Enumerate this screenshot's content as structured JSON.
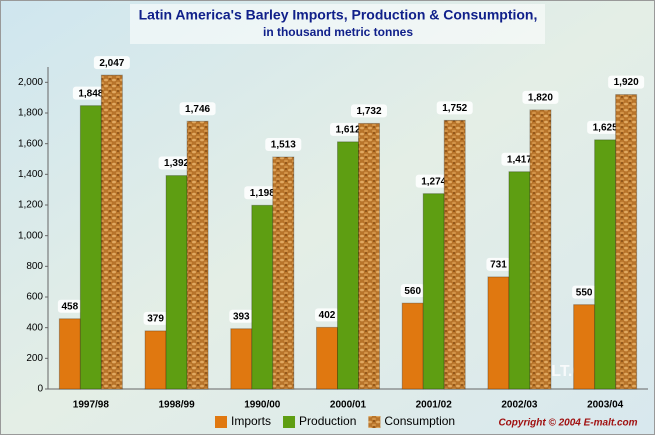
{
  "chart_data": {
    "type": "bar",
    "title": "Latin America's Barley Imports, Production & Consumption,",
    "subtitle": "in thousand metric tonnes",
    "categories": [
      "1997/98",
      "1998/99",
      "1990/00",
      "2000/01",
      "2001/02",
      "2002/03",
      "2003/04"
    ],
    "series": [
      {
        "name": "Imports",
        "color": "#e07810",
        "values": [
          458,
          379,
          393,
          402,
          560,
          731,
          550
        ],
        "value_labels": [
          "458",
          "379",
          "393",
          "402",
          "560",
          "731",
          "550"
        ]
      },
      {
        "name": "Production",
        "color": "#5e9e12",
        "values": [
          1848,
          1392,
          1198,
          1612,
          1274,
          1417,
          1625
        ],
        "value_labels": [
          "1,848",
          "1,392",
          "1,198",
          "1,612",
          "1,274",
          "1,417",
          "1,625"
        ]
      },
      {
        "name": "Consumption",
        "color": "#b8742a",
        "values": [
          2047,
          1746,
          1513,
          1732,
          1752,
          1820,
          1920
        ],
        "value_labels": [
          "2,047",
          "1,746",
          "1,513",
          "1,732",
          "1,752",
          "1,820",
          "1,920"
        ]
      }
    ],
    "ylim": [
      0,
      2100
    ],
    "yticks": [
      0,
      200,
      400,
      600,
      800,
      {
        "value": 1000,
        "label": "1,000"
      },
      {
        "value": 1200,
        "label": "1,200"
      },
      {
        "value": 1400,
        "label": "1,400"
      },
      {
        "value": 1600,
        "label": "1,600"
      },
      {
        "value": 1800,
        "label": "1,800"
      },
      {
        "value": 2000,
        "label": "2,000"
      }
    ],
    "grid": false,
    "legend": "bottom",
    "watermark": "E-MALT.COM",
    "copyright": "Copyright © 2004 E-malt.com"
  }
}
